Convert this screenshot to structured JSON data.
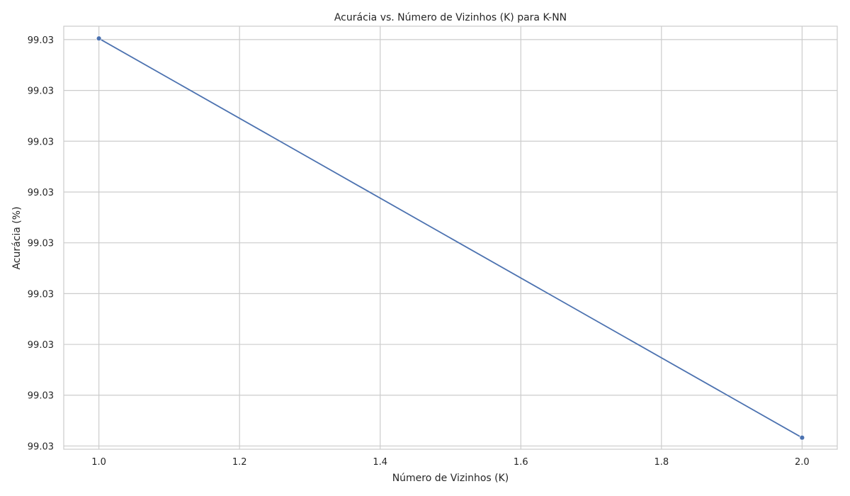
{
  "chart_data": {
    "type": "line",
    "title": "Acurácia vs. Número de Vizinhos (K) para K-NN",
    "xlabel": "Número de Vizinhos (K)",
    "ylabel": "Acurácia (%)",
    "x_ticks": [
      "1.0",
      "1.2",
      "1.4",
      "1.6",
      "1.8",
      "2.0"
    ],
    "y_ticks": [
      "99.03",
      "99.03",
      "99.03",
      "99.03",
      "99.03",
      "99.03",
      "99.03",
      "99.03",
      "99.03"
    ],
    "xlim": [
      0.95,
      2.05
    ],
    "grid": true,
    "series": [
      {
        "x": [
          1.0,
          2.0
        ],
        "y": [
          99.0314,
          99.0306
        ]
      }
    ],
    "colors": {
      "line": "#4c72b0",
      "grid": "#cccccc",
      "text": "#262626",
      "background": "#ffffff"
    }
  }
}
